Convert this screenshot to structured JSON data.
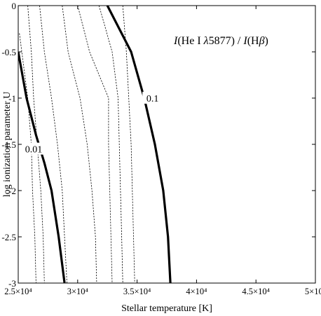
{
  "chart_data": {
    "type": "line",
    "title": "",
    "annotation_parts": [
      {
        "text": "I",
        "italic": true
      },
      {
        "text": "(He I ",
        "italic": false
      },
      {
        "text": "λ",
        "italic": true
      },
      {
        "text": "5877) / ",
        "italic": false
      },
      {
        "text": "I",
        "italic": true
      },
      {
        "text": "(H",
        "italic": false
      },
      {
        "text": "β",
        "italic": true
      },
      {
        "text": ")",
        "italic": false
      }
    ],
    "xlabel": "Stellar temperature [K]",
    "ylabel": "log ionization parameter U",
    "xlim": [
      25000,
      50000
    ],
    "ylim": [
      -3,
      0
    ],
    "xticks": [
      {
        "value": 25000,
        "label": "2.5×10⁴"
      },
      {
        "value": 30000,
        "label": "3×10⁴"
      },
      {
        "value": 35000,
        "label": "3.5×10⁴"
      },
      {
        "value": 40000,
        "label": "4×10⁴"
      },
      {
        "value": 45000,
        "label": "4.5×10⁴"
      },
      {
        "value": 50000,
        "label": "5×10⁴"
      }
    ],
    "yticks": [
      {
        "value": 0,
        "label": "0"
      },
      {
        "value": -0.5,
        "label": "-0.5"
      },
      {
        "value": -1,
        "label": "-1"
      },
      {
        "value": -1.5,
        "label": "-1.5"
      },
      {
        "value": -2,
        "label": "-2"
      },
      {
        "value": -2.5,
        "label": "-2.5"
      },
      {
        "value": -3,
        "label": "-3"
      }
    ],
    "grid": false,
    "series": [
      {
        "style": "dashed",
        "x": [
          25100,
          25300,
          25800,
          26100,
          26200,
          26400,
          26500
        ],
        "y": [
          -0.3,
          -0.5,
          -1,
          -1.5,
          -2,
          -2.5,
          -3
        ]
      },
      {
        "style": "dashed",
        "x": [
          25800,
          26100,
          26300,
          26600,
          26900,
          27100,
          27200
        ],
        "y": [
          0,
          -0.5,
          -1,
          -1.5,
          -2,
          -2.5,
          -3
        ]
      },
      {
        "style": "dashed",
        "x": [
          26800,
          27200,
          27800,
          28300,
          28700,
          28900,
          29100
        ],
        "y": [
          0,
          -0.5,
          -1,
          -1.5,
          -2,
          -2.5,
          -3
        ]
      },
      {
        "style": "dashed",
        "x": [
          28700,
          29200,
          30200,
          30800,
          31200,
          31500,
          31600
        ],
        "y": [
          0,
          -0.5,
          -1,
          -1.5,
          -2,
          -2.5,
          -3
        ]
      },
      {
        "style": "dashed",
        "x": [
          30000,
          31000,
          32600,
          32600,
          32700,
          32800,
          32900
        ],
        "y": [
          0,
          -0.5,
          -1,
          -1.5,
          -2,
          -2.5,
          -3
        ]
      },
      {
        "style": "dashed",
        "x": [
          31800,
          32900,
          33400,
          33500,
          33600,
          33700,
          33800
        ],
        "y": [
          0,
          -0.5,
          -1,
          -1.5,
          -2,
          -2.5,
          -3
        ]
      },
      {
        "style": "dashed",
        "x": [
          33800,
          34100,
          34300,
          34500,
          34600,
          34700,
          34800
        ],
        "y": [
          0,
          -0.5,
          -1,
          -1.5,
          -2,
          -2.5,
          -3
        ]
      },
      {
        "style": "solid",
        "label": "0.01",
        "x": [
          25000,
          25700,
          26500,
          27200,
          27800,
          28400,
          28900
        ],
        "y": [
          -0.5,
          -1,
          -1.4,
          -1.7,
          -2,
          -2.5,
          -3
        ]
      },
      {
        "style": "solid",
        "label": "0.1",
        "x": [
          32500,
          34500,
          35600,
          36500,
          37200,
          37600,
          37800
        ],
        "y": [
          0,
          -0.5,
          -1,
          -1.5,
          -2,
          -2.5,
          -3
        ]
      }
    ],
    "contour_labels": [
      {
        "text": "0.01",
        "x": 26300,
        "y": -1.55
      },
      {
        "text": "0.1",
        "x": 36300,
        "y": -1.0
      }
    ]
  }
}
